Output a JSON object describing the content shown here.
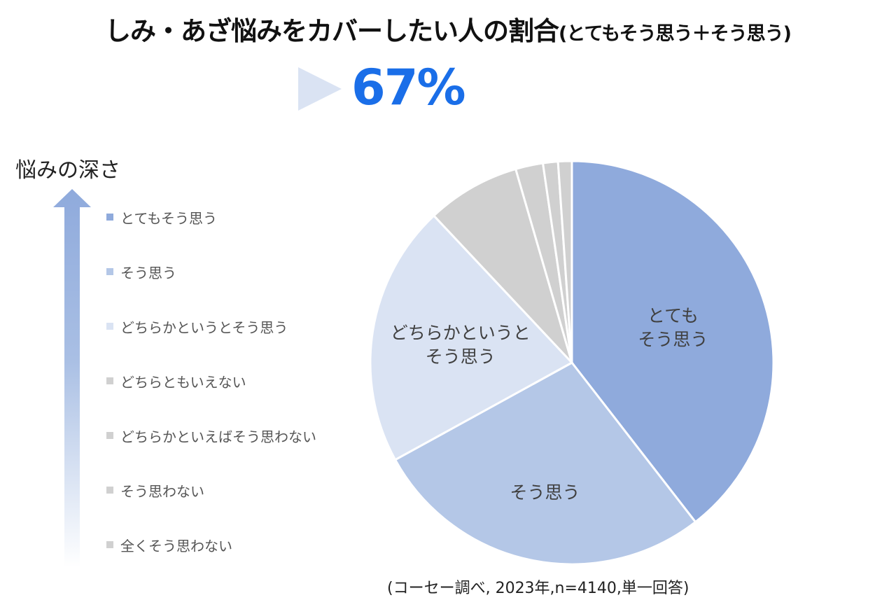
{
  "title": {
    "main": "しみ・あざ悩みをカバーしたい人の割合",
    "sub": "(とてもそう思う＋そう思う)"
  },
  "highlight": {
    "value": "67%"
  },
  "depth_axis": {
    "label": "悩みの深さ"
  },
  "footnote": "(コーセー調べ, 2023年,n=4140,単一回答)",
  "colors": {
    "accent": "#1a6ee8",
    "strong": "#8faadc",
    "medium": "#b4c7e7",
    "light": "#dae3f3",
    "neutral": "#d0d0d0"
  },
  "chart_data": {
    "type": "pie",
    "title": "しみ・あざ悩みをカバーしたい人の割合(とてもそう思う＋そう思う)",
    "start": "12 o'clock",
    "direction": "clockwise",
    "legend_position": "left",
    "slices": [
      {
        "label": "とてもそう思う",
        "value": 39.5,
        "color": "#8faadc",
        "pie_label": [
          "とても",
          "そう思う"
        ]
      },
      {
        "label": "そう思う",
        "value": 27.5,
        "color": "#b4c7e7",
        "pie_label": [
          "そう思う"
        ]
      },
      {
        "label": "どちらかというとそう思う",
        "value": 21.0,
        "color": "#dae3f3",
        "pie_label": [
          "どちらかというと",
          "そう思う"
        ]
      },
      {
        "label": "どちらともいえない",
        "value": 7.5,
        "color": "#d0d0d0",
        "pie_label": []
      },
      {
        "label": "どちらかといえばそう思わない",
        "value": 2.2,
        "color": "#d0d0d0",
        "pie_label": []
      },
      {
        "label": "そう思わない",
        "value": 1.2,
        "color": "#d0d0d0",
        "pie_label": []
      },
      {
        "label": "全くそう思わない",
        "value": 1.1,
        "color": "#d0d0d0",
        "pie_label": []
      }
    ]
  }
}
